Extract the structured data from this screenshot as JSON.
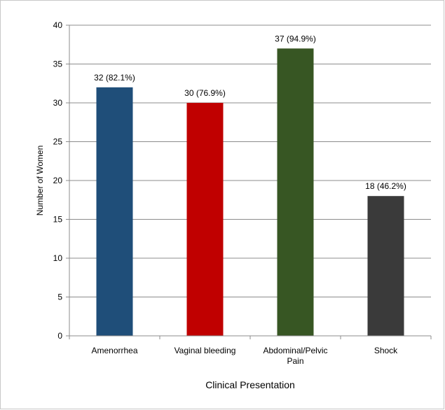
{
  "chart_data": {
    "type": "bar",
    "categories": [
      [
        "Amenorrhea"
      ],
      [
        "Vaginal bleeding"
      ],
      [
        "Abdominal/Pelvic",
        "Pain"
      ],
      [
        "Shock"
      ]
    ],
    "values": [
      32,
      30,
      37,
      18
    ],
    "data_labels": [
      "32 (82.1%)",
      "30 (76.9%)",
      "37 (94.9%)",
      "18 (46.2%)"
    ],
    "colors": [
      "#1f4e79",
      "#c00000",
      "#375623",
      "#3a3a3a"
    ],
    "xlabel": "Clinical Presentation",
    "ylabel": "Number of Women",
    "ylim": [
      0,
      40
    ],
    "yticks": [
      0,
      5,
      10,
      15,
      20,
      25,
      30,
      35,
      40
    ],
    "grid": true,
    "gridline_color": "#8c8c8c"
  }
}
